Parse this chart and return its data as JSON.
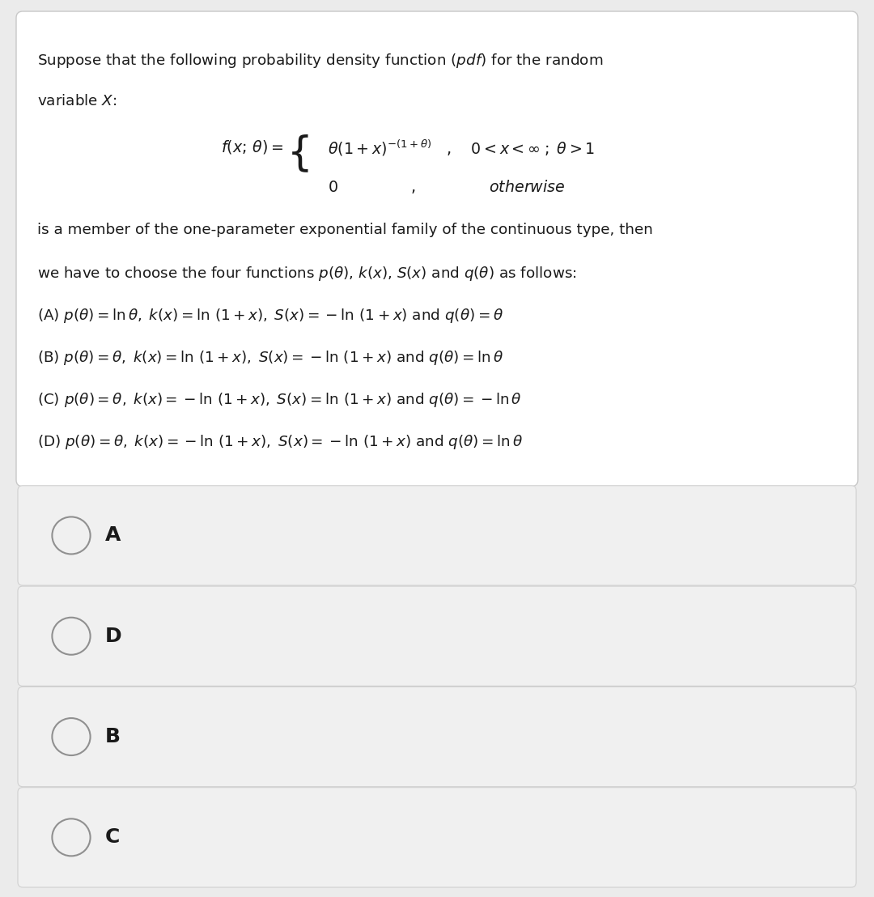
{
  "outer_bg": "#ebebeb",
  "question_box_bg": "#ffffff",
  "question_box_border": "#c8c8c8",
  "option_box_bg": "#f0f0f0",
  "option_box_border": "#d0d0d0",
  "text_color": "#1a1a1a",
  "circle_edge_color": "#909090",
  "choices": [
    "A",
    "D",
    "B",
    "C"
  ],
  "fontsize_body": 13.2,
  "fontsize_formula": 13.5,
  "fontsize_choice_label": 18,
  "figsize": [
    10.8,
    11.08
  ],
  "dpi": 100
}
